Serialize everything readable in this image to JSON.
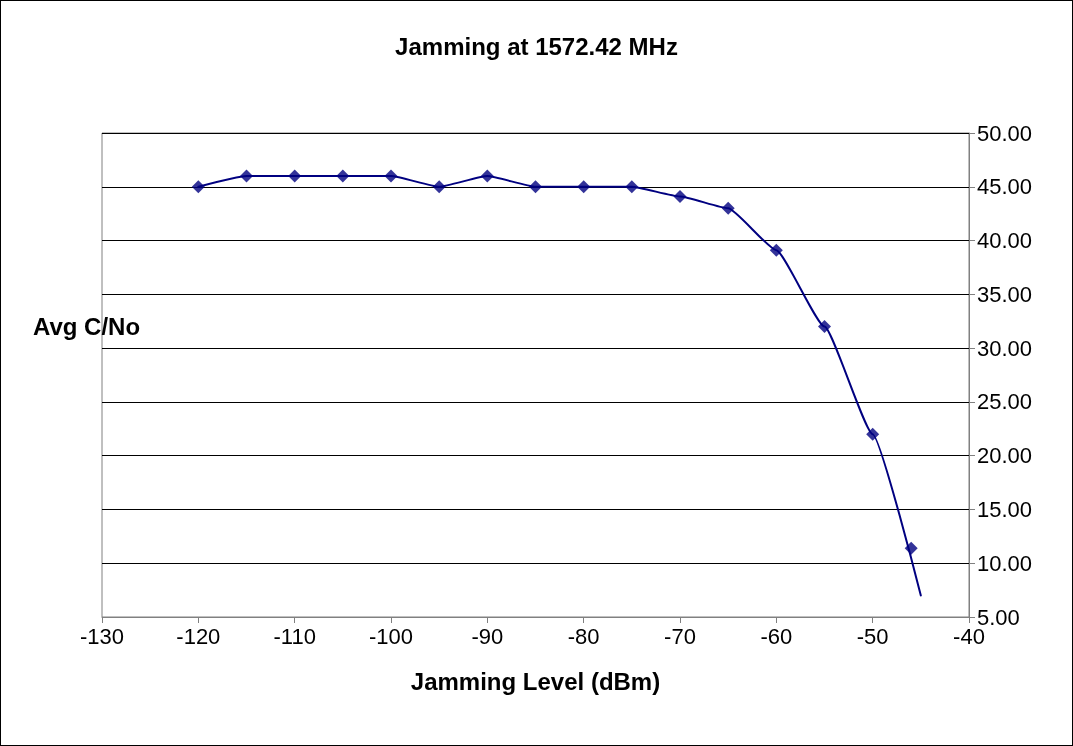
{
  "chart_data": {
    "type": "scatter",
    "title": "Jamming at 1572.42 MHz",
    "xlabel": "Jamming Level (dBm)",
    "ylabel": "Avg C/No",
    "series": [
      {
        "color": "#000080",
        "marker": "diamond",
        "x": [
          -120,
          -115,
          -110,
          -105,
          -100,
          -95,
          -90,
          -85,
          -80,
          -75,
          -70,
          -65,
          -60,
          -55,
          -50,
          -46
        ],
        "values": [
          45,
          46,
          46,
          46,
          46,
          45,
          46,
          45,
          45,
          45,
          44.1,
          43,
          39.1,
          32,
          22,
          11.4
        ]
      },
      {
        "type": "line",
        "color": "#000080",
        "marker": "none",
        "line_style": "solid",
        "x": [
          -120,
          -115,
          -110,
          -105,
          -100,
          -95,
          -90,
          -85,
          -80,
          -75,
          -70,
          -65,
          -60,
          -55,
          -50,
          -45
        ],
        "values": [
          45,
          46,
          46,
          46,
          46,
          45,
          46,
          45,
          45,
          45,
          44.1,
          43,
          39.1,
          32,
          22,
          7
        ]
      }
    ],
    "xlim": [
      -130,
      -40
    ],
    "xticks": [
      -130,
      -120,
      -110,
      -100,
      -90,
      -80,
      -70,
      -60,
      -50,
      -40
    ],
    "ylim": [
      5,
      50
    ],
    "yticks": [
      {
        "value": 5,
        "label": "5.00"
      },
      {
        "value": 10,
        "label": "10.00"
      },
      {
        "value": 15,
        "label": "15.00"
      },
      {
        "value": 20,
        "label": "20.00"
      },
      {
        "value": 25,
        "label": "25.00"
      },
      {
        "value": 30,
        "label": "30.00"
      },
      {
        "value": 35,
        "label": "35.00"
      },
      {
        "value": 40,
        "label": "40.00"
      },
      {
        "value": 45,
        "label": "45.00"
      },
      {
        "value": 50,
        "label": "50.00"
      }
    ],
    "grid": "y"
  }
}
